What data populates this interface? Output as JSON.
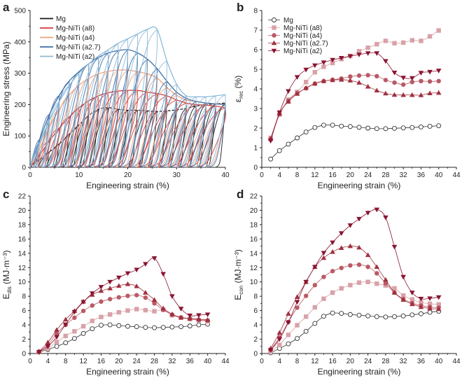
{
  "chart_data": [
    {
      "panel": "a",
      "type": "line",
      "xlabel": "Engineering strain (%)",
      "ylabel": "Engineering stress (MPa)",
      "xlim": [
        0,
        40
      ],
      "ylim": [
        0,
        500
      ],
      "xticks": [
        0,
        10,
        20,
        30,
        40
      ],
      "yticks": [
        0,
        100,
        200,
        300,
        400,
        500
      ],
      "grid": false,
      "legend": "top-left",
      "x": [
        2,
        4,
        6,
        8,
        10,
        12,
        14,
        16,
        18,
        20,
        22,
        24,
        26,
        28,
        30,
        32,
        34,
        36,
        38,
        40
      ],
      "series": [
        {
          "name": "Mg",
          "color": "#1a1a1a",
          "values": [
            25,
            50,
            75,
            105,
            135,
            165,
            185,
            190,
            185,
            182,
            182,
            180,
            178,
            180,
            183,
            188,
            195,
            200,
            202,
            205
          ]
        },
        {
          "name": "Mg-NiTi (a8)",
          "color": "#d23a3a",
          "values": [
            40,
            85,
            125,
            160,
            190,
            212,
            228,
            238,
            243,
            245,
            245,
            240,
            235,
            228,
            215,
            205,
            200,
            198,
            195,
            190
          ]
        },
        {
          "name": "Mg-NiTi (a4)",
          "color": "#efa07e",
          "values": [
            60,
            130,
            185,
            230,
            262,
            283,
            298,
            306,
            310,
            310,
            305,
            298,
            285,
            255,
            230,
            215,
            210,
            205,
            203,
            200
          ]
        },
        {
          "name": "Mg-NiTi (a2.7)",
          "color": "#3f6ea6",
          "values": [
            90,
            170,
            230,
            275,
            305,
            330,
            350,
            365,
            372,
            375,
            365,
            345,
            315,
            275,
            240,
            220,
            210,
            205,
            202,
            200
          ]
        },
        {
          "name": "Mg-NiTi (a2)",
          "color": "#8dbad9",
          "values": [
            80,
            150,
            210,
            260,
            300,
            330,
            355,
            375,
            395,
            410,
            425,
            440,
            440,
            340,
            265,
            228,
            225,
            225,
            228,
            232
          ]
        }
      ]
    },
    {
      "panel": "b",
      "type": "line",
      "xlabel": "Engineering strain (%)",
      "ylabel": {
        "main": "ε",
        "sub": "rec",
        "unit": " (%)"
      },
      "xlim": [
        0,
        44
      ],
      "ylim": [
        0,
        8
      ],
      "xticks": [
        0,
        4,
        8,
        12,
        16,
        20,
        24,
        28,
        32,
        36,
        40,
        44
      ],
      "yticks": [
        0,
        1,
        2,
        3,
        4,
        5,
        6,
        7,
        8
      ],
      "grid": false,
      "legend": "top-left",
      "x": [
        2,
        4,
        6,
        8,
        10,
        12,
        14,
        16,
        18,
        20,
        22,
        24,
        26,
        28,
        30,
        32,
        34,
        36,
        38,
        40
      ],
      "series": [
        {
          "name": "Mg",
          "marker": "open-circle",
          "color": "#333333",
          "values": [
            0.42,
            0.85,
            1.18,
            1.5,
            1.8,
            2.03,
            2.15,
            2.15,
            2.1,
            2.08,
            2.04,
            2.0,
            1.97,
            1.97,
            1.99,
            2.01,
            2.03,
            2.06,
            2.09,
            2.12
          ]
        },
        {
          "name": "Mg-NiTi (a8)",
          "marker": "square",
          "color": "#d8a2a8",
          "values": [
            1.5,
            2.7,
            3.45,
            3.85,
            4.35,
            4.85,
            5.13,
            5.32,
            5.52,
            5.68,
            5.92,
            6.1,
            6.28,
            6.45,
            6.33,
            6.36,
            6.48,
            6.45,
            6.68,
            6.98
          ]
        },
        {
          "name": "Mg-NiTi (a4)",
          "marker": "circle",
          "color": "#ba5a66",
          "values": [
            1.45,
            2.7,
            3.4,
            3.78,
            4.03,
            4.27,
            4.4,
            4.47,
            4.53,
            4.63,
            4.68,
            4.7,
            4.65,
            4.45,
            4.32,
            4.22,
            4.35,
            4.4,
            4.38,
            4.4
          ]
        },
        {
          "name": "Mg-NiTi (a2.7)",
          "marker": "triangle-up",
          "color": "#a0303f",
          "values": [
            1.45,
            2.75,
            3.35,
            3.75,
            4.05,
            4.27,
            4.4,
            4.45,
            4.47,
            4.43,
            4.32,
            4.12,
            3.92,
            3.77,
            3.7,
            3.69,
            3.69,
            3.68,
            3.78,
            3.8
          ]
        },
        {
          "name": "Mg-NiTi (a2)",
          "marker": "triangle-down",
          "color": "#8a1430",
          "values": [
            1.35,
            2.8,
            3.88,
            4.6,
            4.98,
            5.2,
            5.35,
            5.48,
            5.58,
            5.67,
            5.75,
            5.82,
            5.82,
            5.42,
            4.83,
            4.57,
            4.55,
            4.82,
            4.87,
            4.93
          ]
        }
      ]
    },
    {
      "panel": "c",
      "type": "line",
      "xlabel": "Engineering strain (%)",
      "ylabel": {
        "main": "E",
        "sub": "dis",
        "unit": " (MJ·m⁻³)"
      },
      "xlim": [
        0,
        44
      ],
      "ylim": [
        0,
        22
      ],
      "xticks": [
        0,
        4,
        8,
        12,
        16,
        20,
        24,
        28,
        32,
        36,
        40,
        44
      ],
      "yticks": [
        0,
        2,
        4,
        6,
        8,
        10,
        12,
        14,
        16,
        18,
        20,
        22
      ],
      "grid": false,
      "x": [
        2,
        4,
        6,
        8,
        10,
        12,
        14,
        16,
        18,
        20,
        22,
        24,
        26,
        28,
        30,
        32,
        34,
        36,
        38,
        40
      ],
      "series": [
        {
          "marker": "open-circle",
          "color": "#333333",
          "values": [
            0.2,
            0.55,
            1.0,
            1.5,
            2.1,
            2.8,
            3.45,
            3.95,
            4.0,
            3.9,
            3.8,
            3.75,
            3.65,
            3.6,
            3.65,
            3.7,
            3.75,
            3.85,
            4.0,
            4.1
          ]
        },
        {
          "marker": "square",
          "color": "#d8a2a8",
          "values": [
            0.2,
            0.7,
            1.6,
            2.45,
            3.1,
            3.8,
            4.55,
            5.1,
            5.45,
            5.75,
            6.0,
            6.2,
            6.05,
            5.9,
            6.1,
            5.35,
            5.0,
            4.8,
            4.65,
            4.5
          ]
        },
        {
          "marker": "circle",
          "color": "#ba5a66",
          "values": [
            0.25,
            1.2,
            2.8,
            4.0,
            5.0,
            5.95,
            6.7,
            7.25,
            7.6,
            7.85,
            8.05,
            8.15,
            7.8,
            7.0,
            6.1,
            5.4,
            5.0,
            4.85,
            4.7,
            4.6
          ]
        },
        {
          "marker": "triangle-up",
          "color": "#a0303f",
          "values": [
            0.3,
            1.55,
            3.3,
            4.75,
            5.95,
            7.25,
            8.2,
            8.75,
            9.1,
            9.45,
            9.7,
            9.4,
            8.5,
            7.5,
            6.3,
            5.5,
            5.05,
            4.9,
            4.8,
            4.7
          ]
        },
        {
          "marker": "triangle-down",
          "color": "#8a1430",
          "values": [
            0.2,
            1.0,
            2.3,
            4.05,
            5.8,
            7.2,
            8.4,
            9.3,
            10.0,
            10.6,
            11.2,
            11.7,
            12.5,
            13.3,
            11.1,
            8.0,
            6.25,
            5.3,
            5.35,
            5.45
          ]
        }
      ]
    },
    {
      "panel": "d",
      "type": "line",
      "xlabel": "Engineering strain (%)",
      "ylabel": {
        "main": "E",
        "sub": "con",
        "unit": " (MJ·m⁻³)"
      },
      "xlim": [
        0,
        44
      ],
      "ylim": [
        0,
        22
      ],
      "xticks": [
        0,
        4,
        8,
        12,
        16,
        20,
        24,
        28,
        32,
        36,
        40,
        44
      ],
      "yticks": [
        0,
        2,
        4,
        6,
        8,
        10,
        12,
        14,
        16,
        18,
        20,
        22
      ],
      "grid": false,
      "x": [
        2,
        4,
        6,
        8,
        10,
        12,
        14,
        16,
        18,
        20,
        22,
        24,
        26,
        28,
        30,
        32,
        34,
        36,
        38,
        40
      ],
      "series": [
        {
          "marker": "open-circle",
          "color": "#333333",
          "values": [
            0.1,
            0.7,
            1.35,
            2.1,
            3.1,
            4.2,
            5.2,
            5.65,
            5.6,
            5.45,
            5.35,
            5.25,
            5.15,
            5.1,
            5.15,
            5.25,
            5.4,
            5.55,
            5.75,
            5.9
          ]
        },
        {
          "marker": "square",
          "color": "#d8a2a8",
          "values": [
            0.3,
            1.2,
            2.6,
            3.95,
            5.15,
            6.45,
            7.65,
            8.5,
            9.1,
            9.55,
            9.9,
            10.0,
            9.75,
            9.5,
            9.1,
            8.1,
            7.55,
            7.15,
            6.95,
            6.85
          ]
        },
        {
          "marker": "circle",
          "color": "#ba5a66",
          "values": [
            0.5,
            2.25,
            4.4,
            6.4,
            8.05,
            9.55,
            10.7,
            11.5,
            11.95,
            12.3,
            12.4,
            12.1,
            11.2,
            9.8,
            8.5,
            7.6,
            7.05,
            6.7,
            6.5,
            6.4
          ]
        },
        {
          "marker": "triangle-up",
          "color": "#a0303f",
          "values": [
            0.7,
            2.9,
            5.55,
            7.9,
            10.0,
            12.1,
            13.35,
            14.2,
            14.75,
            15.0,
            14.8,
            13.75,
            12.1,
            10.3,
            8.5,
            7.5,
            6.9,
            6.5,
            6.3,
            6.2
          ]
        },
        {
          "marker": "triangle-down",
          "color": "#8a1430",
          "values": [
            0.5,
            2.0,
            4.35,
            7.2,
            10.0,
            12.1,
            14.05,
            15.5,
            16.8,
            17.9,
            18.8,
            19.65,
            20.1,
            19.0,
            14.9,
            10.7,
            8.5,
            7.65,
            7.7,
            7.85
          ]
        }
      ]
    }
  ]
}
